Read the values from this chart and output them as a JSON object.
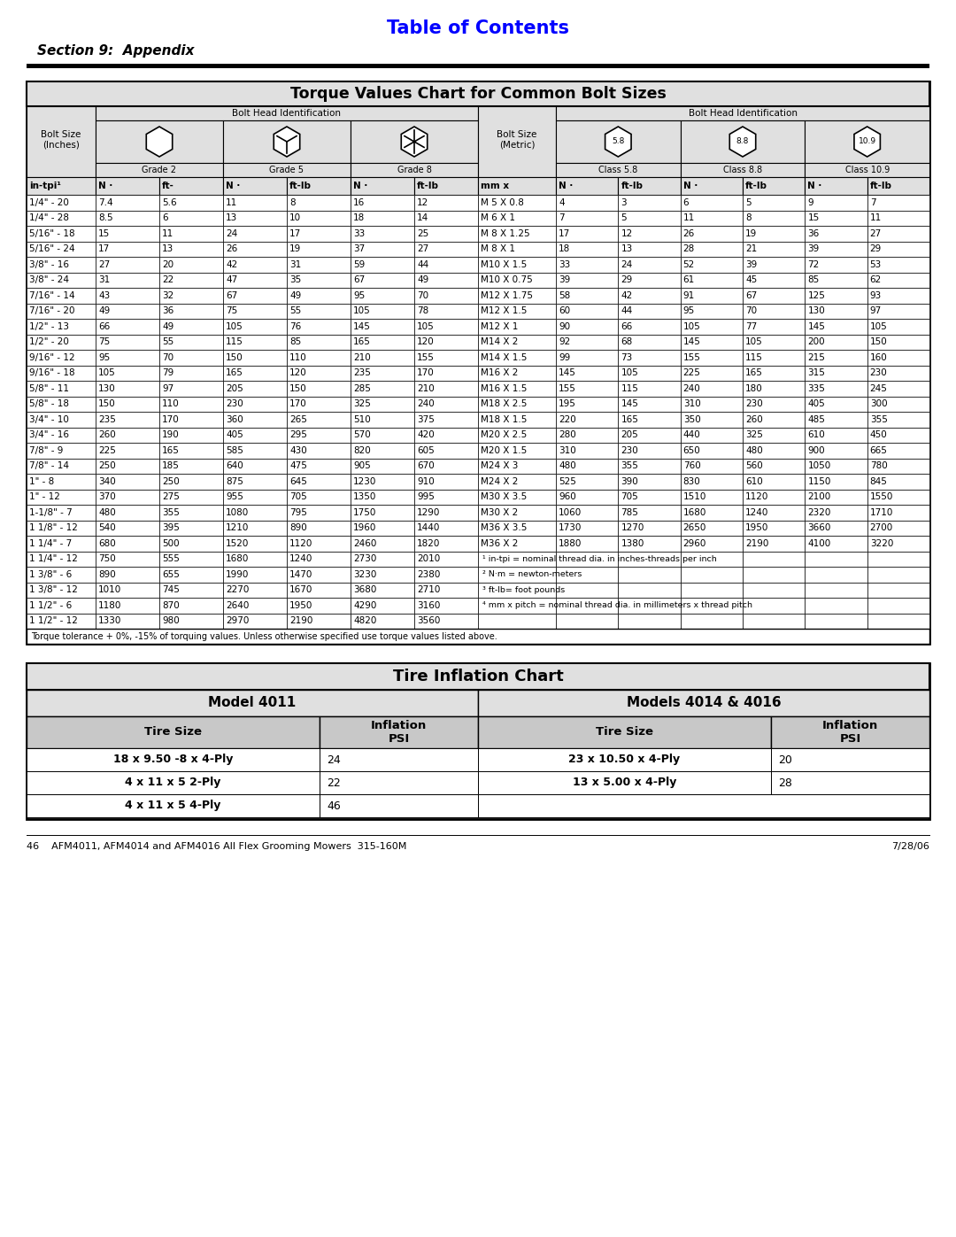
{
  "page_title": "Table of Contents",
  "section_label": "Section 9:  Appendix",
  "torque_title": "Torque Values Chart for Common Bolt Sizes",
  "tire_title": "Tire Inflation Chart",
  "footer_left": "46    AFM4011, AFM4014 and AFM4016 All Flex Grooming Mowers  315-160M",
  "footer_right": "7/28/06",
  "bolt_head_id_label": "Bolt Head Identification",
  "grade2_label": "Grade 2",
  "grade5_label": "Grade 5",
  "grade8_label": "Grade 8",
  "class58_label": "Class 5.8",
  "class88_label": "Class 8.8",
  "class109_label": "Class 10.9",
  "inch_subheader": [
    "in-tpi¹",
    "N ·",
    "ft-",
    "N ·",
    "ft-lb",
    "N ·",
    "ft-lb"
  ],
  "metric_subheader": [
    "mm x",
    "N ·",
    "ft-lb",
    "N ·",
    "ft-lb",
    "N ·",
    "ft-lb"
  ],
  "inch_data": [
    [
      "1/4\" - 20",
      "7.4",
      "5.6",
      "11",
      "8",
      "16",
      "12"
    ],
    [
      "1/4\" - 28",
      "8.5",
      "6",
      "13",
      "10",
      "18",
      "14"
    ],
    [
      "5/16\" - 18",
      "15",
      "11",
      "24",
      "17",
      "33",
      "25"
    ],
    [
      "5/16\" - 24",
      "17",
      "13",
      "26",
      "19",
      "37",
      "27"
    ],
    [
      "3/8\" - 16",
      "27",
      "20",
      "42",
      "31",
      "59",
      "44"
    ],
    [
      "3/8\" - 24",
      "31",
      "22",
      "47",
      "35",
      "67",
      "49"
    ],
    [
      "7/16\" - 14",
      "43",
      "32",
      "67",
      "49",
      "95",
      "70"
    ],
    [
      "7/16\" - 20",
      "49",
      "36",
      "75",
      "55",
      "105",
      "78"
    ],
    [
      "1/2\" - 13",
      "66",
      "49",
      "105",
      "76",
      "145",
      "105"
    ],
    [
      "1/2\" - 20",
      "75",
      "55",
      "115",
      "85",
      "165",
      "120"
    ],
    [
      "9/16\" - 12",
      "95",
      "70",
      "150",
      "110",
      "210",
      "155"
    ],
    [
      "9/16\" - 18",
      "105",
      "79",
      "165",
      "120",
      "235",
      "170"
    ],
    [
      "5/8\" - 11",
      "130",
      "97",
      "205",
      "150",
      "285",
      "210"
    ],
    [
      "5/8\" - 18",
      "150",
      "110",
      "230",
      "170",
      "325",
      "240"
    ],
    [
      "3/4\" - 10",
      "235",
      "170",
      "360",
      "265",
      "510",
      "375"
    ],
    [
      "3/4\" - 16",
      "260",
      "190",
      "405",
      "295",
      "570",
      "420"
    ],
    [
      "7/8\" - 9",
      "225",
      "165",
      "585",
      "430",
      "820",
      "605"
    ],
    [
      "7/8\" - 14",
      "250",
      "185",
      "640",
      "475",
      "905",
      "670"
    ],
    [
      "1\" - 8",
      "340",
      "250",
      "875",
      "645",
      "1230",
      "910"
    ],
    [
      "1\" - 12",
      "370",
      "275",
      "955",
      "705",
      "1350",
      "995"
    ],
    [
      "1-1/8\" - 7",
      "480",
      "355",
      "1080",
      "795",
      "1750",
      "1290"
    ],
    [
      "1 1/8\" - 12",
      "540",
      "395",
      "1210",
      "890",
      "1960",
      "1440"
    ],
    [
      "1 1/4\" - 7",
      "680",
      "500",
      "1520",
      "1120",
      "2460",
      "1820"
    ],
    [
      "1 1/4\" - 12",
      "750",
      "555",
      "1680",
      "1240",
      "2730",
      "2010"
    ],
    [
      "1 3/8\" - 6",
      "890",
      "655",
      "1990",
      "1470",
      "3230",
      "2380"
    ],
    [
      "1 3/8\" - 12",
      "1010",
      "745",
      "2270",
      "1670",
      "3680",
      "2710"
    ],
    [
      "1 1/2\" - 6",
      "1180",
      "870",
      "2640",
      "1950",
      "4290",
      "3160"
    ],
    [
      "1 1/2\" - 12",
      "1330",
      "980",
      "2970",
      "2190",
      "4820",
      "3560"
    ]
  ],
  "metric_data": [
    [
      "M 5 X 0.8",
      "4",
      "3",
      "6",
      "5",
      "9",
      "7"
    ],
    [
      "M 6 X 1",
      "7",
      "5",
      "11",
      "8",
      "15",
      "11"
    ],
    [
      "M 8 X 1.25",
      "17",
      "12",
      "26",
      "19",
      "36",
      "27"
    ],
    [
      "M 8 X 1",
      "18",
      "13",
      "28",
      "21",
      "39",
      "29"
    ],
    [
      "M10 X 1.5",
      "33",
      "24",
      "52",
      "39",
      "72",
      "53"
    ],
    [
      "M10 X 0.75",
      "39",
      "29",
      "61",
      "45",
      "85",
      "62"
    ],
    [
      "M12 X 1.75",
      "58",
      "42",
      "91",
      "67",
      "125",
      "93"
    ],
    [
      "M12 X 1.5",
      "60",
      "44",
      "95",
      "70",
      "130",
      "97"
    ],
    [
      "M12 X 1",
      "90",
      "66",
      "105",
      "77",
      "145",
      "105"
    ],
    [
      "M14 X 2",
      "92",
      "68",
      "145",
      "105",
      "200",
      "150"
    ],
    [
      "M14 X 1.5",
      "99",
      "73",
      "155",
      "115",
      "215",
      "160"
    ],
    [
      "M16 X 2",
      "145",
      "105",
      "225",
      "165",
      "315",
      "230"
    ],
    [
      "M16 X 1.5",
      "155",
      "115",
      "240",
      "180",
      "335",
      "245"
    ],
    [
      "M18 X 2.5",
      "195",
      "145",
      "310",
      "230",
      "405",
      "300"
    ],
    [
      "M18 X 1.5",
      "220",
      "165",
      "350",
      "260",
      "485",
      "355"
    ],
    [
      "M20 X 2.5",
      "280",
      "205",
      "440",
      "325",
      "610",
      "450"
    ],
    [
      "M20 X 1.5",
      "310",
      "230",
      "650",
      "480",
      "900",
      "665"
    ],
    [
      "M24 X 3",
      "480",
      "355",
      "760",
      "560",
      "1050",
      "780"
    ],
    [
      "M24 X 2",
      "525",
      "390",
      "830",
      "610",
      "1150",
      "845"
    ],
    [
      "M30 X 3.5",
      "960",
      "705",
      "1510",
      "1120",
      "2100",
      "1550"
    ],
    [
      "M30 X 2",
      "1060",
      "785",
      "1680",
      "1240",
      "2320",
      "1710"
    ],
    [
      "M36 X 3.5",
      "1730",
      "1270",
      "2650",
      "1950",
      "3660",
      "2700"
    ],
    [
      "M36 X 2",
      "1880",
      "1380",
      "2960",
      "2190",
      "4100",
      "3220"
    ]
  ],
  "footnotes": [
    "¹ in-tpi = nominal thread dia. in inches-threads per inch",
    "² N·m = newton-meters",
    "³ ft-lb= foot pounds",
    "⁴ mm x pitch = nominal thread dia. in millimeters x thread pitch"
  ],
  "torque_tolerance": "Torque tolerance + 0%, -15% of torquing values. Unless otherwise specified use torque values listed above.",
  "tire_model1": "Model 4011",
  "tire_model2": "Models 4014 & 4016",
  "tire_col_headers": [
    "Tire Size",
    "Inflation\nPSI"
  ],
  "tire_data_model1": [
    [
      "18 x 9.50 -8 x 4-Ply",
      "24"
    ],
    [
      "4 x 11 x 5 2-Ply",
      "22"
    ],
    [
      "4 x 11 x 5 4-Ply",
      "46"
    ]
  ],
  "tire_data_model2": [
    [
      "23 x 10.50 x 4-Ply",
      "20"
    ],
    [
      "13 x 5.00 x 4-Ply",
      "28"
    ]
  ]
}
